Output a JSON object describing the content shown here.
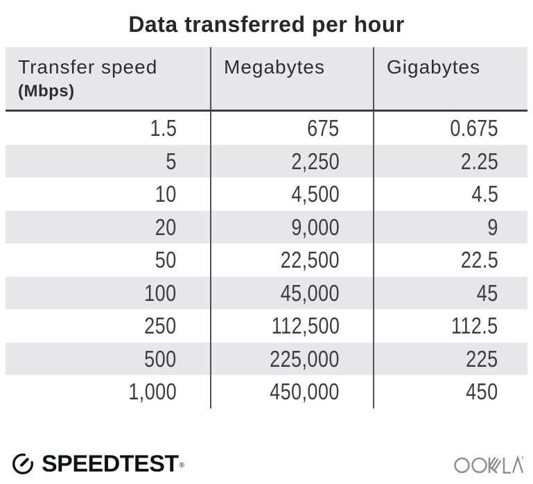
{
  "title": "Data transferred per hour",
  "table": {
    "columns": [
      {
        "label": "Transfer speed",
        "sublabel": "(Mbps)"
      },
      {
        "label": "Megabytes"
      },
      {
        "label": "Gigabytes"
      }
    ],
    "rows": [
      [
        "1.5",
        "675",
        "0.675"
      ],
      [
        "5",
        "2,250",
        "2.25"
      ],
      [
        "10",
        "4,500",
        "4.5"
      ],
      [
        "20",
        "9,000",
        "9"
      ],
      [
        "50",
        "22,500",
        "22.5"
      ],
      [
        "100",
        "45,000",
        "45"
      ],
      [
        "250",
        "112,500",
        "112.5"
      ],
      [
        "500",
        "225,000",
        "225"
      ],
      [
        "1,000",
        "450,000",
        "450"
      ]
    ]
  },
  "footer": {
    "speedtest_label": "SPEEDTEST",
    "speedtest_trademark": "®",
    "ookla_label": "OOKLA"
  },
  "colors": {
    "row_alt_bg": "#e7e7ea",
    "header_bg": "#e7e7ea",
    "divider": "#515157",
    "header_underline": "#3c3c42",
    "title_text": "#26262b",
    "header_text": "#2c2c32",
    "data_text": "#3c3c42",
    "ookla_gray": "#8d8d90",
    "speedtest_black": "#111218"
  },
  "chart_data": {
    "type": "table",
    "title": "Data transferred per hour",
    "columns": [
      "Transfer speed (Mbps)",
      "Megabytes",
      "Gigabytes"
    ],
    "rows": [
      [
        1.5,
        675,
        0.675
      ],
      [
        5,
        2250,
        2.25
      ],
      [
        10,
        4500,
        4.5
      ],
      [
        20,
        9000,
        9
      ],
      [
        50,
        22500,
        22.5
      ],
      [
        100,
        45000,
        45
      ],
      [
        250,
        112500,
        112.5
      ],
      [
        500,
        225000,
        225
      ],
      [
        1000,
        450000,
        450
      ]
    ]
  }
}
